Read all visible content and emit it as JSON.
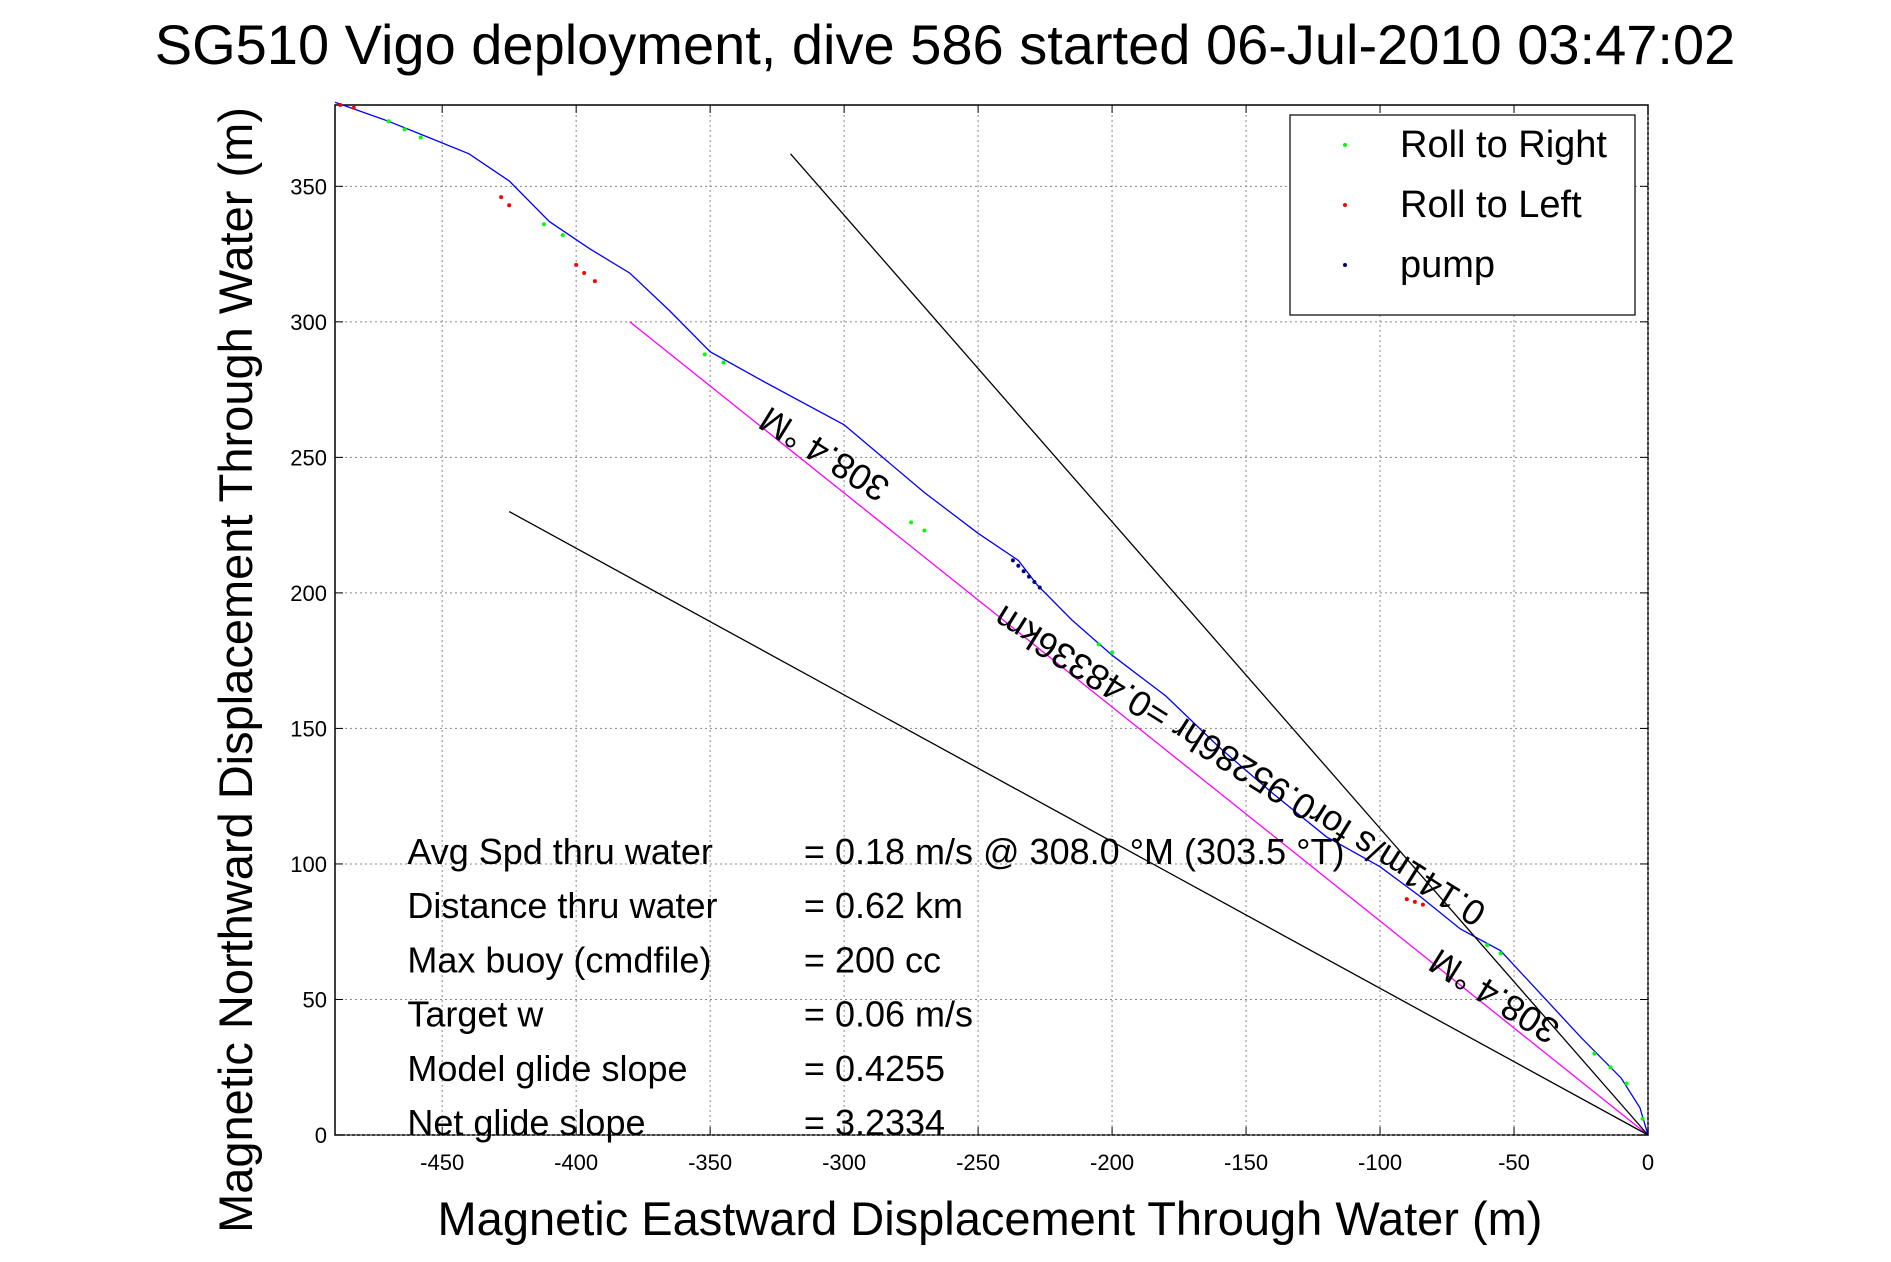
{
  "chart_data": {
    "type": "line",
    "title": "SG510 Vigo deployment, dive 586 started 06-Jul-2010 03:47:02",
    "xlabel": "Magnetic Eastward Displacement Through Water (m)",
    "ylabel": "Magnetic Northward Displacement Through Water (m)",
    "xlim": [
      -490,
      0
    ],
    "ylim": [
      0,
      380
    ],
    "x_ticks": [
      -450,
      -400,
      -350,
      -300,
      -250,
      -200,
      -150,
      -100,
      -50,
      0
    ],
    "y_ticks": [
      0,
      50,
      100,
      150,
      200,
      250,
      300,
      350
    ],
    "x_tick_labels": [
      "-450",
      "-400",
      "-350",
      "-300",
      "-250",
      "-200",
      "-150",
      "-100",
      "-50",
      "0"
    ],
    "y_tick_labels": [
      "0",
      "50",
      "100",
      "150",
      "200",
      "250",
      "300",
      "350"
    ],
    "grid": true,
    "legend_position": "top-right",
    "series": [
      {
        "name": "",
        "style": "line",
        "color": "#0000ff",
        "x": [
          -490,
          -470,
          -455,
          -440,
          -425,
          -410,
          -395,
          -380,
          -365,
          -350,
          -330,
          -300,
          -270,
          -250,
          -235,
          -228,
          -215,
          -200,
          -180,
          -160,
          -140,
          -120,
          -100,
          -85,
          -70,
          -55,
          -40,
          -25,
          -10,
          -3,
          0
        ],
        "y": [
          381,
          374,
          368,
          362,
          352,
          337,
          327,
          318,
          304,
          289,
          278,
          262,
          237,
          222,
          212,
          203,
          190,
          177,
          162,
          143,
          126,
          110,
          99,
          88,
          76,
          68,
          52,
          36,
          21,
          10,
          0
        ]
      },
      {
        "name": "",
        "style": "line",
        "color": "#ff00ff",
        "x": [
          -380,
          0
        ],
        "y": [
          300,
          0
        ]
      },
      {
        "name": "Roll to Right",
        "style": "markers",
        "color": "#00ff00",
        "x": [
          -470,
          -464,
          -458,
          -412,
          -405,
          -352,
          -345,
          -275,
          -270,
          -205,
          -200,
          -60,
          -55,
          -20,
          -14,
          -8,
          -2
        ],
        "y": [
          374,
          371,
          368,
          336,
          332,
          288,
          285,
          226,
          223,
          181,
          178,
          70,
          67,
          30,
          25,
          19,
          6
        ]
      },
      {
        "name": "Roll to Left",
        "style": "markers",
        "color": "#ff0000",
        "x": [
          -488,
          -483,
          -428,
          -425,
          -400,
          -397,
          -393,
          -90,
          -87,
          -84
        ],
        "y": [
          380,
          379,
          346,
          343,
          321,
          318,
          315,
          87,
          86,
          85
        ]
      },
      {
        "name": "pump",
        "style": "markers",
        "color": "#000080",
        "x": [
          -237,
          -235,
          -233,
          -231,
          -229,
          -227
        ],
        "y": [
          212,
          210,
          208,
          206,
          204,
          202
        ]
      },
      {
        "name": "",
        "style": "line",
        "color": "#000000",
        "x": [
          -320,
          0
        ],
        "y": [
          362,
          0
        ]
      },
      {
        "name": "",
        "style": "line",
        "color": "#000000",
        "x": [
          -425,
          0
        ],
        "y": [
          230,
          0
        ]
      }
    ],
    "annotations": [
      {
        "text": "308.4 °M",
        "x": -305,
        "y": 255,
        "angle": 212
      },
      {
        "text": "308.4 °M",
        "x": -55,
        "y": 55,
        "angle": 212
      },
      {
        "text": "0.141m/s for0.95286hr =0.48336km",
        "x": -150,
        "y": 140,
        "angle": 212
      },
      {
        "text": "Avg Spd thru water",
        "x": -463,
        "y": 100
      },
      {
        "text": "=  0.18 m/s @ 308.0 °M (303.5 °T)",
        "x": -315,
        "y": 100
      },
      {
        "text": "Distance thru water",
        "x": -463,
        "y": 80
      },
      {
        "text": "=  0.62 km",
        "x": -315,
        "y": 80
      },
      {
        "text": "Max buoy (cmdfile)",
        "x": -463,
        "y": 60
      },
      {
        "text": "= 200 cc",
        "x": -315,
        "y": 60
      },
      {
        "text": "Target w",
        "x": -463,
        "y": 40
      },
      {
        "text": "= 0.06 m/s",
        "x": -315,
        "y": 40
      },
      {
        "text": "Model glide slope",
        "x": -463,
        "y": 20
      },
      {
        "text": "= 0.4255",
        "x": -315,
        "y": 20
      },
      {
        "text": "Net glide slope",
        "x": -463,
        "y": 0
      },
      {
        "text": "= 3.2334",
        "x": -315,
        "y": 0
      }
    ]
  }
}
